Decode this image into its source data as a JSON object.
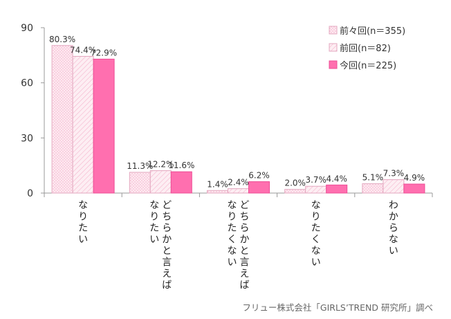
{
  "chart_data": {
    "type": "bar",
    "title": "",
    "xlabel": "",
    "ylabel": "",
    "ylim": [
      0,
      90
    ],
    "yticks": [
      0,
      30,
      60,
      90
    ],
    "grid": false,
    "legend_placement": "top-right",
    "categories": [
      [
        "なりたい"
      ],
      [
        "どちらかと言えば",
        "なりたい"
      ],
      [
        "どちらかと言えば",
        "なりたくない"
      ],
      [
        "なりたくない"
      ],
      [
        "わからない"
      ]
    ],
    "series": [
      {
        "name": "前々回(n＝355)",
        "values": [
          80.3,
          11.3,
          1.4,
          2.0,
          5.1
        ],
        "labels": [
          "80.3%",
          "11.3%",
          "1.4%",
          "2.0%",
          "5.1%"
        ],
        "color": "#fde6ee",
        "pattern": "dots"
      },
      {
        "name": "前回(n＝82)",
        "values": [
          74.4,
          12.2,
          2.4,
          3.7,
          7.3
        ],
        "labels": [
          "74.4%",
          "12.2%",
          "2.4%",
          "3.7%",
          "7.3%"
        ],
        "color": "#fbe0ea",
        "pattern": "diagonal"
      },
      {
        "name": "今回(n＝225)",
        "values": [
          72.9,
          11.6,
          6.2,
          4.4,
          4.9
        ],
        "labels": [
          "72.9%",
          "11.6%",
          "6.2%",
          "4.4%",
          "4.9%"
        ],
        "color": "#ff6faf",
        "pattern": "solid"
      }
    ]
  },
  "source": "フリュー株式会社「GIRLS’TREND 研究所」調べ"
}
